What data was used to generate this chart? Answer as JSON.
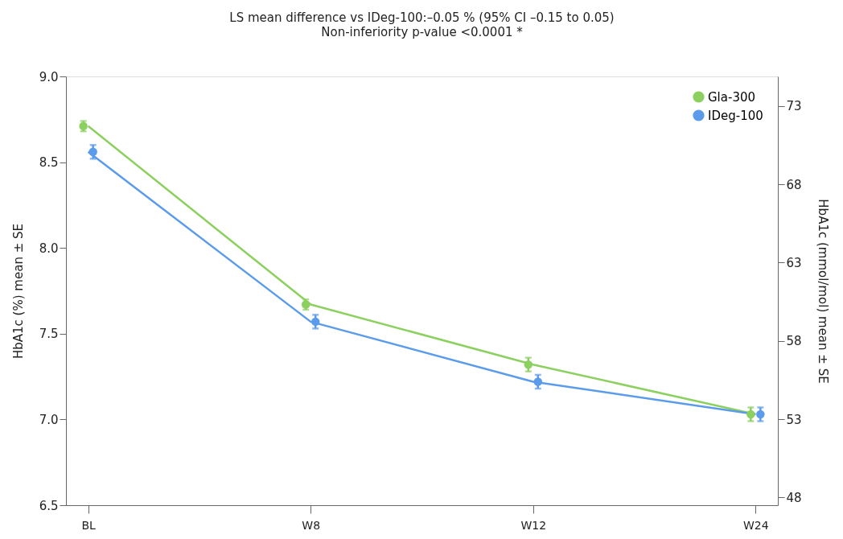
{
  "chart_data": {
    "type": "line",
    "title": "LS mean difference vs IDeg-100:–0.05 % (95% CI –0.15 to 0.05)",
    "subtitle": "Non-inferiority p-value <0.0001 *",
    "ylabel": "HbA1c (%) mean ± SE",
    "y2label": "HbA1c (mmol/mol) mean ± SE",
    "categories": [
      "BL",
      "W8",
      "W12",
      "W24"
    ],
    "ylim": [
      6.5,
      9.0
    ],
    "yticks": [
      6.5,
      {
        "value": 7,
        "label": "7.0"
      },
      7.5,
      {
        "value": 8,
        "label": "8.0"
      },
      8.5,
      {
        "value": 9,
        "label": "9.0"
      }
    ],
    "y2lim": [
      47.5,
      74.9
    ],
    "y2ticks": [
      48,
      53,
      58,
      63,
      68,
      73
    ],
    "series": [
      {
        "name": "Gla-300",
        "color": "#8cd05f",
        "values": [
          8.71,
          7.67,
          7.32,
          7.03
        ],
        "errors": [
          0.03,
          0.03,
          0.04,
          0.04
        ]
      },
      {
        "name": "IDeg-100",
        "color": "#5b9beb",
        "values": [
          8.56,
          7.57,
          7.22,
          7.03
        ],
        "errors": [
          0.04,
          0.04,
          0.04,
          0.04
        ]
      }
    ],
    "legend": "top right",
    "marker": "circle",
    "line_style": "solid",
    "grid": false
  }
}
